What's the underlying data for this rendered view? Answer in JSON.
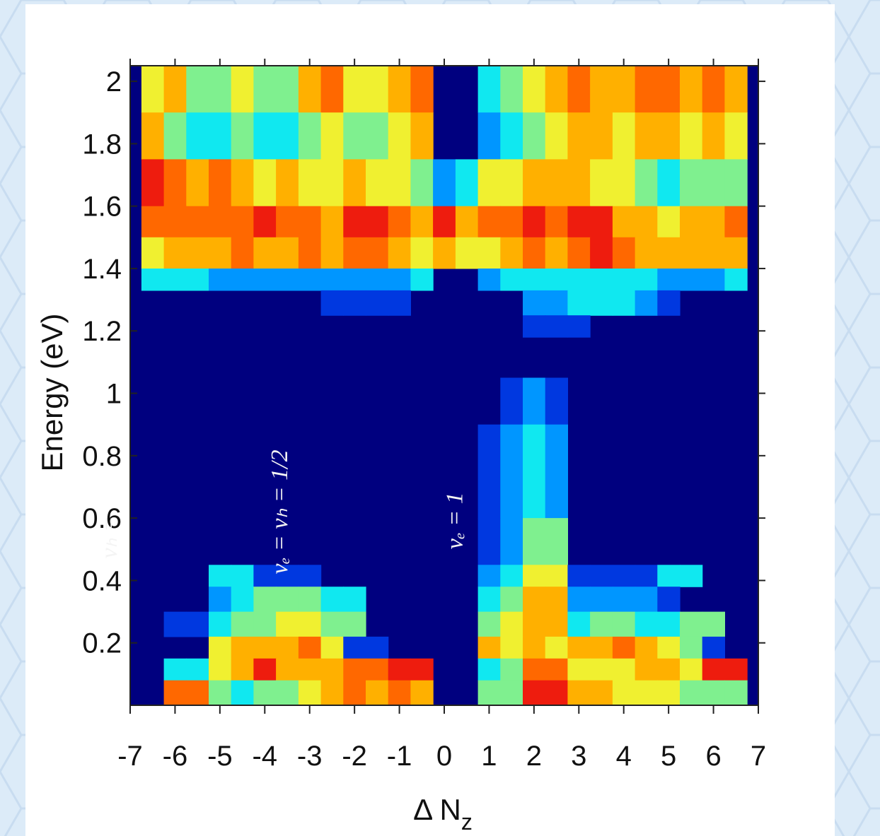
{
  "chart_data": {
    "type": "heatmap",
    "title": "",
    "xlabel": "Δ N",
    "xlabel_sub": "z",
    "ylabel": "Energy (eV)",
    "xlim": [
      -7,
      7
    ],
    "ylim": [
      0,
      2.05
    ],
    "x_ticks": [
      "-7",
      "-6",
      "-5",
      "-4",
      "-3",
      "-2",
      "-1",
      "0",
      "1",
      "2",
      "3",
      "4",
      "5",
      "6",
      "7"
    ],
    "y_ticks": [
      "0.2",
      "0.4",
      "0.6",
      "0.8",
      "1",
      "1.2",
      "1.4",
      "1.6",
      "1.8",
      "2"
    ],
    "x_centers": [
      -6.5,
      -6,
      -5.5,
      -5,
      -4.5,
      -4,
      -3.5,
      -3,
      -2.5,
      -2,
      -1.5,
      -1,
      -0.5,
      0,
      0.5,
      1,
      1.5,
      2,
      2.5,
      3,
      3.5,
      4,
      4.5,
      5,
      5.5,
      6,
      6.5
    ],
    "note": "intensity index 0 (dark blue) to 8 (red); columns ordered by x_centers",
    "bands": [
      {
        "y0": 1.9,
        "y1": 2.05,
        "v": [
          5,
          6,
          4,
          4,
          5,
          4,
          4,
          6,
          7,
          5,
          5,
          6,
          7,
          0,
          0,
          3,
          4,
          5,
          6,
          7,
          6,
          6,
          7,
          7,
          6,
          7,
          6
        ]
      },
      {
        "y0": 1.75,
        "y1": 1.9,
        "v": [
          6,
          4,
          3,
          3,
          4,
          3,
          3,
          4,
          5,
          4,
          4,
          5,
          6,
          0,
          0,
          2,
          3,
          4,
          5,
          6,
          6,
          5,
          6,
          6,
          5,
          6,
          5
        ]
      },
      {
        "y0": 1.6,
        "y1": 1.75,
        "v": [
          8,
          7,
          6,
          7,
          6,
          5,
          6,
          5,
          5,
          6,
          5,
          5,
          4,
          2,
          3,
          5,
          5,
          6,
          6,
          6,
          5,
          5,
          4,
          3,
          4,
          4,
          4
        ]
      },
      {
        "y0": 1.5,
        "y1": 1.6,
        "v": [
          7,
          7,
          7,
          7,
          7,
          8,
          7,
          7,
          6,
          8,
          8,
          7,
          6,
          8,
          6,
          7,
          7,
          8,
          7,
          8,
          8,
          6,
          6,
          5,
          6,
          6,
          7
        ]
      },
      {
        "y0": 1.4,
        "y1": 1.5,
        "v": [
          5,
          6,
          6,
          6,
          7,
          6,
          6,
          7,
          6,
          7,
          7,
          6,
          5,
          6,
          5,
          5,
          6,
          7,
          6,
          7,
          8,
          7,
          6,
          6,
          6,
          6,
          6
        ]
      },
      {
        "y0": 1.33,
        "y1": 1.4,
        "v": [
          3,
          3,
          3,
          2,
          2,
          2,
          2,
          2,
          2,
          2,
          2,
          2,
          3,
          0,
          0,
          2,
          3,
          3,
          3,
          3,
          3,
          3,
          3,
          2,
          2,
          2,
          3
        ]
      },
      {
        "y0": 1.25,
        "y1": 1.33,
        "v": [
          0,
          0,
          0,
          0,
          0,
          0,
          0,
          0,
          1,
          1,
          1,
          1,
          0,
          0,
          0,
          0,
          0,
          2,
          2,
          3,
          3,
          3,
          2,
          1,
          0,
          0,
          0
        ]
      },
      {
        "y0": 1.18,
        "y1": 1.25,
        "v": [
          0,
          0,
          0,
          0,
          0,
          0,
          0,
          0,
          0,
          0,
          0,
          0,
          0,
          0,
          0,
          0,
          0,
          1,
          1,
          1,
          0,
          0,
          0,
          0,
          0,
          0,
          0
        ]
      },
      {
        "y0": 0.9,
        "y1": 1.05,
        "v": [
          0,
          0,
          0,
          0,
          0,
          0,
          0,
          0,
          0,
          0,
          0,
          0,
          0,
          0,
          0,
          0,
          1,
          2,
          1,
          0,
          0,
          0,
          0,
          0,
          0,
          0,
          0
        ]
      },
      {
        "y0": 0.6,
        "y1": 0.9,
        "v": [
          0,
          0,
          0,
          0,
          0,
          0,
          0,
          0,
          0,
          0,
          0,
          0,
          0,
          0,
          0,
          1,
          2,
          3,
          2,
          0,
          0,
          0,
          0,
          0,
          0,
          0,
          0
        ]
      },
      {
        "y0": 0.45,
        "y1": 0.6,
        "v": [
          0,
          0,
          0,
          0,
          0,
          0,
          0,
          0,
          0,
          0,
          0,
          0,
          0,
          0,
          0,
          1,
          2,
          4,
          4,
          0,
          0,
          0,
          0,
          0,
          0,
          0,
          0
        ]
      },
      {
        "y0": 0.38,
        "y1": 0.45,
        "v": [
          0,
          0,
          0,
          3,
          3,
          1,
          1,
          1,
          0,
          0,
          0,
          0,
          0,
          0,
          0,
          2,
          3,
          5,
          5,
          1,
          1,
          1,
          1,
          3,
          3,
          0,
          0
        ]
      },
      {
        "y0": 0.3,
        "y1": 0.38,
        "v": [
          0,
          0,
          0,
          2,
          3,
          4,
          4,
          4,
          3,
          3,
          0,
          0,
          0,
          0,
          0,
          3,
          4,
          6,
          6,
          2,
          2,
          2,
          2,
          1,
          0,
          0,
          0
        ]
      },
      {
        "y0": 0.22,
        "y1": 0.3,
        "v": [
          0,
          1,
          1,
          3,
          4,
          4,
          5,
          5,
          4,
          4,
          0,
          0,
          0,
          0,
          0,
          4,
          5,
          6,
          6,
          3,
          4,
          4,
          3,
          3,
          4,
          4,
          0
        ]
      },
      {
        "y0": 0.15,
        "y1": 0.22,
        "v": [
          0,
          0,
          0,
          5,
          6,
          6,
          6,
          7,
          5,
          1,
          1,
          0,
          0,
          0,
          0,
          6,
          5,
          6,
          5,
          6,
          6,
          7,
          6,
          5,
          4,
          1,
          0
        ]
      },
      {
        "y0": 0.08,
        "y1": 0.15,
        "v": [
          0,
          3,
          3,
          5,
          6,
          8,
          6,
          6,
          6,
          7,
          7,
          8,
          8,
          0,
          0,
          3,
          4,
          7,
          7,
          5,
          5,
          5,
          6,
          6,
          5,
          8,
          8
        ]
      },
      {
        "y0": 0.0,
        "y1": 0.08,
        "v": [
          0,
          7,
          7,
          4,
          3,
          4,
          4,
          5,
          6,
          7,
          6,
          7,
          6,
          0,
          0,
          4,
          4,
          8,
          8,
          6,
          6,
          5,
          5,
          5,
          4,
          4,
          4
        ]
      }
    ],
    "annotations": [
      {
        "text": "νₑ = νₕ = 1/2",
        "x": -3.5,
        "y": 0.42
      },
      {
        "text": "νₑ = 1",
        "x": 0.4,
        "y": 0.5
      },
      {
        "text": "νₕ =",
        "x": -7.3,
        "y": 0.47
      }
    ],
    "grid": false,
    "colormap": "jet"
  }
}
